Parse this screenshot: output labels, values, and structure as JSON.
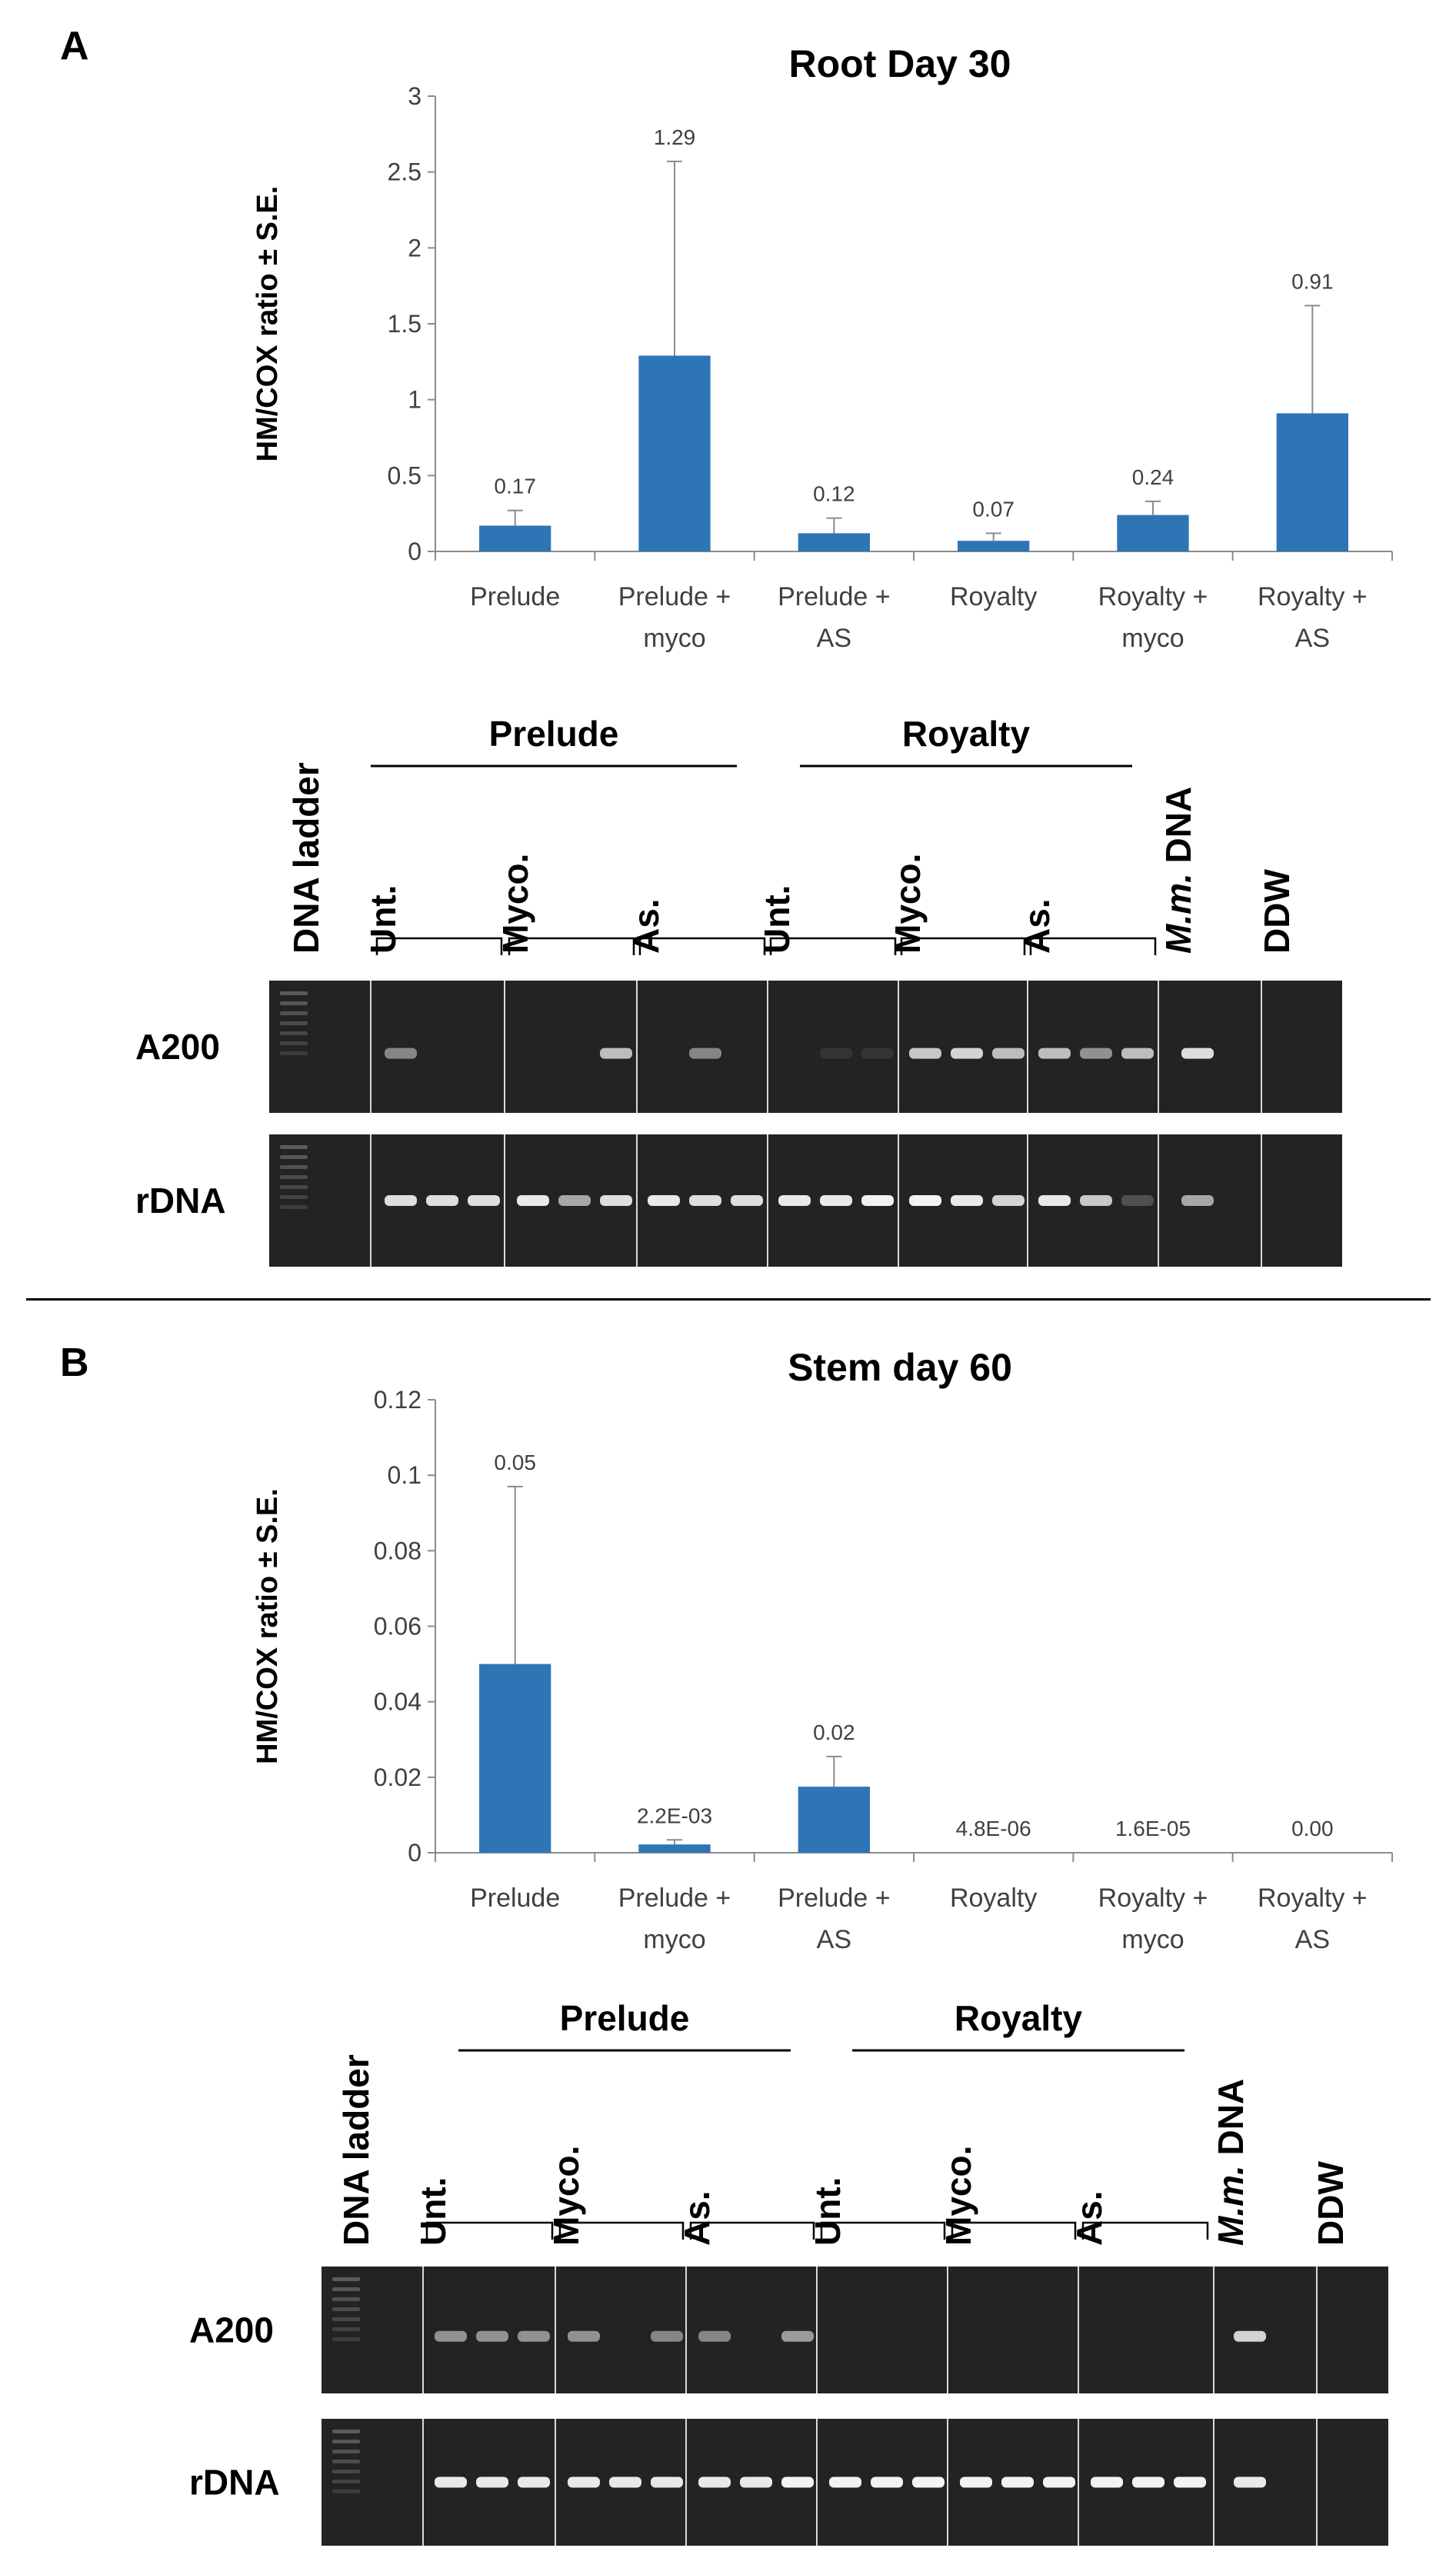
{
  "panels": [
    {
      "letter": "A"
    },
    {
      "letter": "B"
    }
  ],
  "chart_data": [
    {
      "type": "bar",
      "title": "Root Day 30",
      "ylabel": "HM/COX ratio ± S.E.",
      "xlabel": "",
      "ylim": [
        0,
        3
      ],
      "yticks": [
        0,
        0.5,
        1,
        1.5,
        2,
        2.5,
        3
      ],
      "ytick_labels": [
        "0",
        "0.5",
        "1",
        "1.5",
        "2",
        "2.5",
        "3"
      ],
      "categories": [
        [
          "Prelude"
        ],
        [
          "Prelude +",
          "myco"
        ],
        [
          "Prelude +",
          "AS"
        ],
        [
          "Royalty"
        ],
        [
          "Royalty +",
          "myco"
        ],
        [
          "Royalty +",
          "AS"
        ]
      ],
      "values": [
        0.17,
        1.29,
        0.12,
        0.07,
        0.24,
        0.91
      ],
      "errors": [
        0.1,
        1.28,
        0.1,
        0.05,
        0.09,
        0.71
      ],
      "data_labels": [
        "0.17",
        "1.29",
        "0.12",
        "0.07",
        "0.24",
        "0.91"
      ],
      "bar_color": "#2E75B6",
      "grid": false
    },
    {
      "type": "bar",
      "title": "Stem day 60",
      "ylabel": "HM/COX ratio ± S.E.",
      "xlabel": "",
      "ylim": [
        0,
        0.12
      ],
      "yticks": [
        0,
        0.02,
        0.04,
        0.06,
        0.08,
        0.1,
        0.12
      ],
      "ytick_labels": [
        "0",
        "0.02",
        "0.04",
        "0.06",
        "0.08",
        "0.1",
        "0.12"
      ],
      "categories": [
        [
          "Prelude"
        ],
        [
          "Prelude +",
          "myco"
        ],
        [
          "Prelude +",
          "AS"
        ],
        [
          "Royalty"
        ],
        [
          "Royalty +",
          "myco"
        ],
        [
          "Royalty +",
          "AS"
        ]
      ],
      "values": [
        0.05,
        0.0022,
        0.0175,
        4.8e-06,
        1.6e-05,
        0
      ],
      "errors": [
        0.047,
        0.0012,
        0.008,
        0,
        0,
        0
      ],
      "data_labels": [
        "0.05",
        "2.2E-03",
        "0.02",
        "4.8E-06",
        "1.6E-05",
        "0.00"
      ],
      "bar_color": "#2E75B6",
      "grid": false
    }
  ],
  "gels": [
    {
      "group_labels": [
        "Prelude",
        "Royalty"
      ],
      "column_labels": {
        "ladder": "DNA ladder",
        "untreated": "Unt.",
        "myco": "Myco.",
        "as": "As.",
        "mm_italic": "M.m.",
        "mm_rest": " DNA",
        "ddw": "DDW"
      },
      "row_labels": [
        "A200",
        "rDNA"
      ],
      "a200_band_intensity": [
        [
          0.45,
          0,
          0
        ],
        [
          0,
          0,
          0.7
        ],
        [
          0,
          0.45,
          0
        ],
        [
          0,
          0.08,
          0.08
        ],
        [
          0.75,
          0.8,
          0.7
        ],
        [
          0.7,
          0.5,
          0.7
        ]
      ],
      "a200_mm_intensity": 0.85,
      "rdna_band_intensity": [
        [
          0.85,
          0.85,
          0.85
        ],
        [
          0.9,
          0.6,
          0.85
        ],
        [
          0.9,
          0.85,
          0.85
        ],
        [
          0.9,
          0.9,
          0.95
        ],
        [
          0.95,
          0.9,
          0.8
        ],
        [
          0.9,
          0.75,
          0.2
        ]
      ],
      "rdna_mm_intensity": 0.6
    },
    {
      "group_labels": [
        "Prelude",
        "Royalty"
      ],
      "column_labels": {
        "ladder": "DNA ladder",
        "untreated": "Unt.",
        "myco": "Myco.",
        "as": "As.",
        "mm_italic": "M.m.",
        "mm_rest": " DNA",
        "ddw": "DDW"
      },
      "row_labels": [
        "A200",
        "rDNA"
      ],
      "a200_band_intensity": [
        [
          0.5,
          0.5,
          0.5
        ],
        [
          0.5,
          0,
          0.45
        ],
        [
          0.45,
          0,
          0.55
        ],
        [
          0,
          0,
          0
        ],
        [
          0,
          0,
          0
        ],
        [
          0,
          0,
          0
        ]
      ],
      "a200_mm_intensity": 0.8,
      "rdna_band_intensity": [
        [
          0.9,
          0.9,
          0.9
        ],
        [
          0.9,
          0.9,
          0.9
        ],
        [
          0.9,
          0.9,
          0.95
        ],
        [
          0.95,
          0.95,
          0.95
        ],
        [
          0.95,
          0.95,
          0.95
        ],
        [
          0.95,
          0.95,
          0.95
        ]
      ],
      "rdna_mm_intensity": 0.9
    }
  ]
}
